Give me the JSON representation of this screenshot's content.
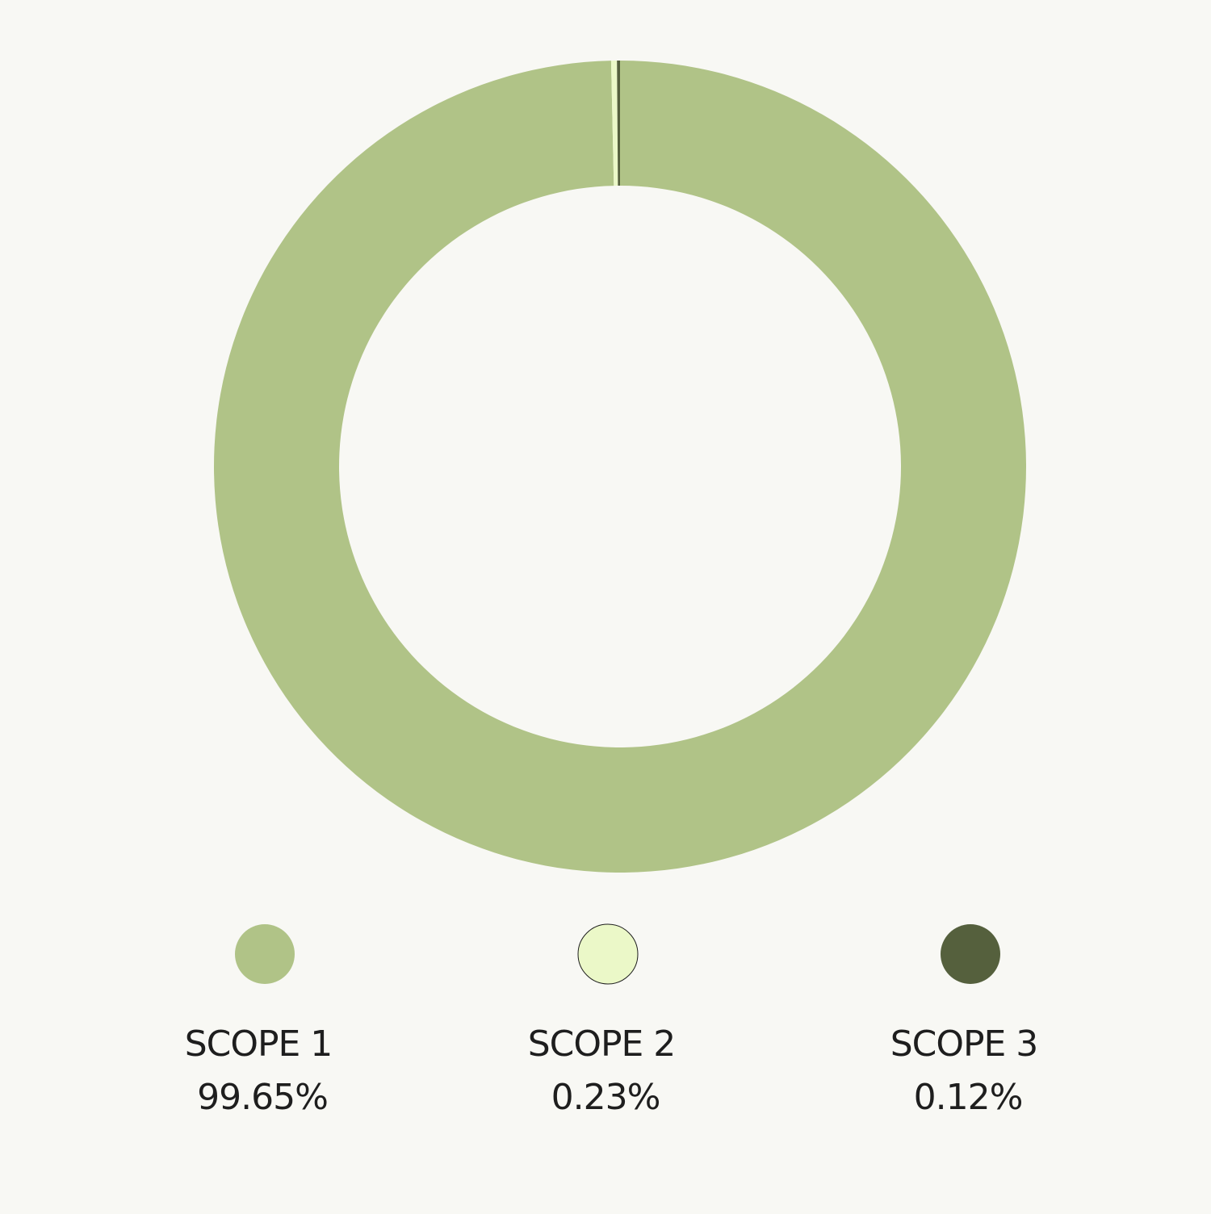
{
  "chart_data": {
    "type": "donut",
    "categories": [
      "SCOPE 1",
      "SCOPE 2",
      "SCOPE 3"
    ],
    "values": [
      99.65,
      0.23,
      0.12
    ],
    "value_labels": [
      "99.65%",
      "0.23%",
      "0.12%"
    ],
    "colors": [
      "#b0c387",
      "#ebf8c8",
      "#55603d"
    ]
  }
}
